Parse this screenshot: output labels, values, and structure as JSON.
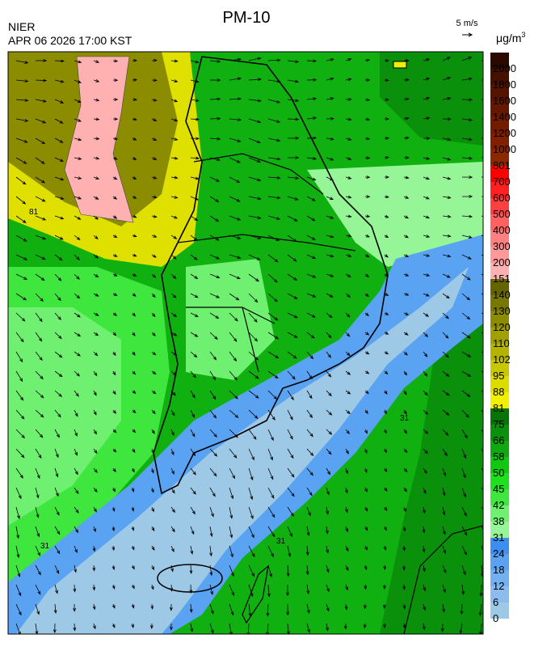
{
  "header": {
    "title": "PM-10",
    "agency": "NIER",
    "timestamp": "APR 06 2026 17:00 KST",
    "wind_scale": "5 m/s"
  },
  "colorbar": {
    "unit": "μg/m",
    "unit_exponent": "3",
    "levels": [
      0,
      6,
      12,
      18,
      24,
      31,
      38,
      42,
      45,
      50,
      58,
      66,
      75,
      81,
      88,
      95,
      102,
      110,
      120,
      130,
      140,
      151,
      200,
      300,
      400,
      500,
      600,
      700,
      801,
      1000,
      1200,
      1400,
      1600,
      1800,
      2000
    ],
    "colors": [
      "#9ec9e6",
      "#8cbcee",
      "#72b0f2",
      "#5aa2f2",
      "#3c8ef0",
      "#96f596",
      "#70f070",
      "#3ee63e",
      "#1ee01e",
      "#10c810",
      "#10a810",
      "#0a900a",
      "#087408",
      "#f0f000",
      "#dcdc00",
      "#c8c800",
      "#b4b400",
      "#a0a000",
      "#8c8c00",
      "#787800",
      "#646400",
      "#ffb0b0",
      "#ff9898",
      "#ff8080",
      "#ff6060",
      "#ff4040",
      "#ff2020",
      "#ff0000",
      "#8c2800",
      "#802000",
      "#741c00",
      "#641800",
      "#541400",
      "#441000",
      "#2a0a00"
    ]
  },
  "contour_labels": [
    "81",
    "31",
    "31",
    "31"
  ]
}
